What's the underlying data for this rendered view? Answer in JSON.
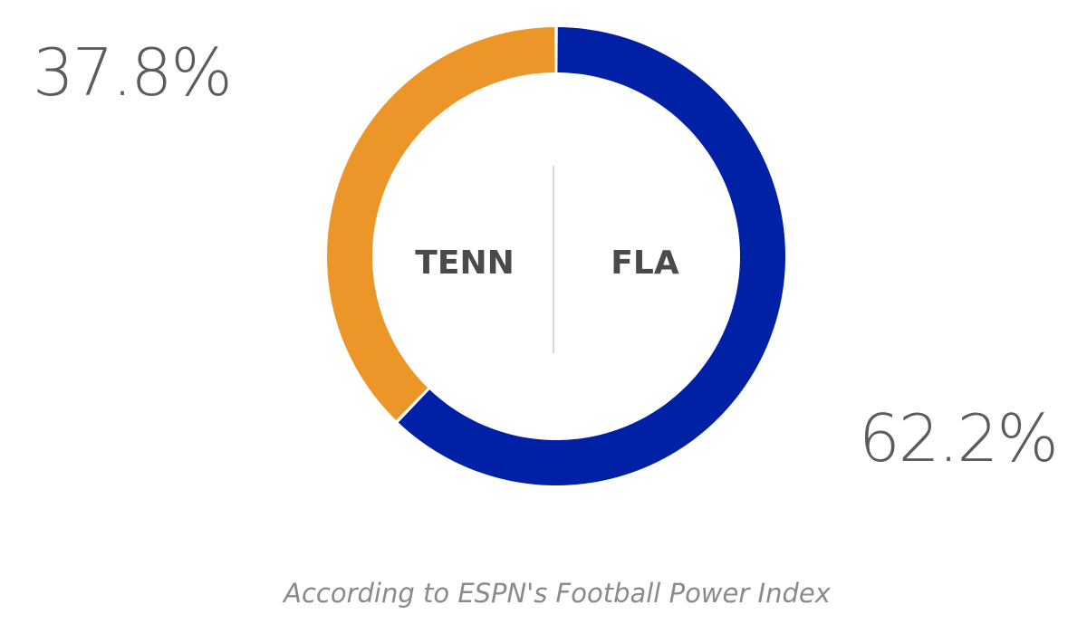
{
  "chart_data": {
    "type": "pie",
    "series": [
      {
        "name": "TENN",
        "value": 37.8,
        "label": "37.8%",
        "color": "#EC962A"
      },
      {
        "name": "FLA",
        "value": 62.2,
        "label": "62.2%",
        "color": "#0021A5"
      }
    ],
    "footnote": "According to ESPN's Football Power Index"
  }
}
